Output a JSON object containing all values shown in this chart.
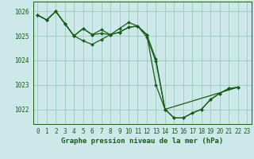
{
  "title": "Graphe pression niveau de la mer (hPa)",
  "bg_color": "#cce8e8",
  "grid_color": "#99ccbb",
  "line_color": "#1a5c1a",
  "xlim": [
    -0.5,
    23.5
  ],
  "ylim": [
    1021.4,
    1026.4
  ],
  "yticks": [
    1022,
    1023,
    1024,
    1025,
    1026
  ],
  "xticks": [
    0,
    1,
    2,
    3,
    4,
    5,
    6,
    7,
    8,
    9,
    10,
    11,
    12,
    13,
    14,
    15,
    16,
    17,
    18,
    19,
    20,
    21,
    22,
    23
  ],
  "series": [
    {
      "x": [
        0,
        1,
        2,
        3,
        4,
        5,
        6,
        7,
        8,
        9,
        10,
        11,
        12,
        13,
        14,
        15,
        16,
        17,
        18,
        19,
        20,
        21,
        22
      ],
      "y": [
        1025.85,
        1025.65,
        1026.0,
        1025.5,
        1025.0,
        1025.3,
        1025.05,
        1025.1,
        1025.05,
        1025.15,
        1025.35,
        1025.4,
        1024.95,
        1023.95,
        1022.0,
        1021.65,
        1021.65,
        1021.85,
        1022.0,
        1022.4,
        1022.65,
        1022.85,
        1022.9
      ]
    },
    {
      "x": [
        0,
        1,
        2,
        3,
        4,
        5,
        6,
        7,
        8,
        9,
        10,
        11,
        12,
        13,
        14,
        15,
        16,
        17,
        18,
        19,
        20,
        21,
        22
      ],
      "y": [
        1025.85,
        1025.65,
        1026.0,
        1025.5,
        1025.0,
        1024.8,
        1024.65,
        1024.85,
        1025.05,
        1025.15,
        1025.35,
        1025.4,
        1025.05,
        1023.0,
        1022.0,
        1021.65,
        1021.65,
        1021.85,
        1022.0,
        1022.4,
        1022.65,
        1022.85,
        1022.9
      ]
    },
    {
      "x": [
        0,
        1,
        2,
        3,
        4,
        5,
        6,
        7,
        8,
        9,
        10,
        11,
        12,
        13,
        14,
        22
      ],
      "y": [
        1025.85,
        1025.65,
        1026.0,
        1025.5,
        1025.0,
        1025.3,
        1025.05,
        1025.25,
        1025.05,
        1025.3,
        1025.55,
        1025.4,
        1025.05,
        1024.05,
        1022.0,
        1022.9
      ]
    }
  ],
  "title_fontsize": 6.5,
  "tick_fontsize": 5.5,
  "marker_size": 2.0,
  "line_width": 0.9
}
